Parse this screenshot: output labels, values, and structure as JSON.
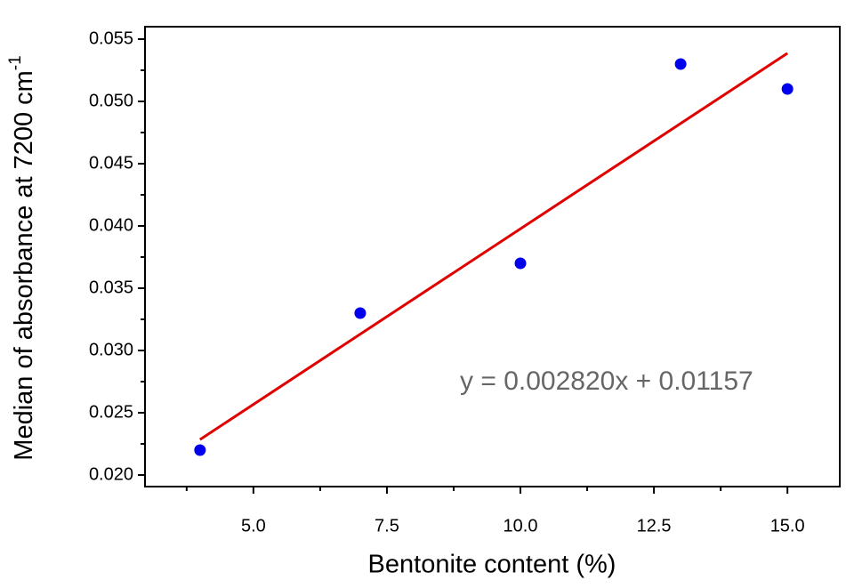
{
  "chart_data": {
    "type": "scatter",
    "x_label": "Bentonite content (%)",
    "y_label": "Median of absorbance at 7200 cm",
    "y_label_sup": "-1",
    "annotation": "y = 0.002820x + 0.01157",
    "series": [
      {
        "x": [
          4,
          7,
          10,
          13,
          15
        ],
        "values": [
          0.022,
          0.033,
          0.037,
          0.053,
          0.051
        ],
        "color": "#0000ee"
      }
    ],
    "fit": {
      "x": [
        4,
        15
      ],
      "values": [
        0.02285,
        0.05387
      ],
      "color": "#e00000"
    },
    "xlim": [
      2.97,
      15.98
    ],
    "ylim": [
      0.01907,
      0.056
    ],
    "xticks": [
      {
        "value": 5,
        "label": "5.0"
      },
      7.5,
      {
        "value": 10,
        "label": "10.0"
      },
      12.5,
      {
        "value": 15,
        "label": "15.0"
      }
    ],
    "xminor_ticks": [
      3.75,
      6.25,
      8.75,
      11.25,
      13.75
    ],
    "yticks": [
      {
        "value": 0.02,
        "label": "0.020"
      },
      0.025,
      {
        "value": 0.03,
        "label": "0.030"
      },
      0.035,
      {
        "value": 0.04,
        "label": "0.040"
      },
      0.045,
      {
        "value": 0.05,
        "label": "0.050"
      },
      0.055
    ],
    "yminor_ticks": [
      0.0225,
      0.0275,
      0.0325,
      0.0375,
      0.0425,
      0.0475,
      0.0525
    ],
    "grid": false
  }
}
